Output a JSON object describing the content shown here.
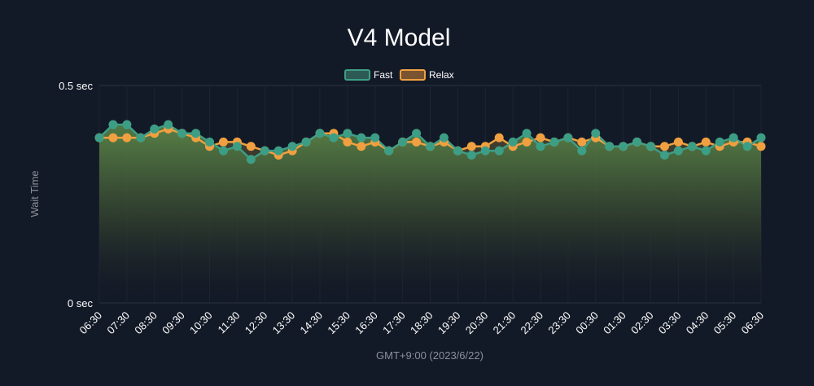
{
  "chart_data": {
    "type": "area",
    "title": "V4 Model",
    "xlabel": "GMT+9:00 (2023/6/22)",
    "ylabel": "Wait Time",
    "y_tick_labels": [
      "0 sec",
      "0.5 sec"
    ],
    "ylim": [
      0,
      0.5
    ],
    "grid": true,
    "legend_position": "top-center",
    "x_tick_labels": [
      "06:30",
      "07:30",
      "08:30",
      "09:30",
      "10:30",
      "11:30",
      "12:30",
      "13:30",
      "14:30",
      "15:30",
      "16:30",
      "17:30",
      "18:30",
      "19:30",
      "20:30",
      "21:30",
      "22:30",
      "23:30",
      "00:30",
      "01:30",
      "02:30",
      "03:30",
      "04:30",
      "05:30",
      "06:30"
    ],
    "points_per_hour": 2,
    "series": [
      {
        "name": "Fast",
        "color": "#3d9e86",
        "values": [
          0.38,
          0.41,
          0.41,
          0.38,
          0.4,
          0.41,
          0.39,
          0.39,
          0.37,
          0.35,
          0.36,
          0.33,
          0.35,
          0.35,
          0.36,
          0.37,
          0.39,
          0.38,
          0.39,
          0.38,
          0.38,
          0.35,
          0.37,
          0.39,
          0.36,
          0.38,
          0.35,
          0.34,
          0.35,
          0.35,
          0.37,
          0.39,
          0.36,
          0.37,
          0.38,
          0.35,
          0.39,
          0.36,
          0.36,
          0.37,
          0.36,
          0.34,
          0.35,
          0.36,
          0.35,
          0.37,
          0.38,
          0.36,
          0.38
        ]
      },
      {
        "name": "Relax",
        "color": "#f0a040",
        "values": [
          0.38,
          0.38,
          0.38,
          0.38,
          0.39,
          0.4,
          0.39,
          0.38,
          0.36,
          0.37,
          0.37,
          0.36,
          0.35,
          0.34,
          0.35,
          0.37,
          0.39,
          0.39,
          0.37,
          0.36,
          0.37,
          0.35,
          0.37,
          0.37,
          0.36,
          0.37,
          0.35,
          0.36,
          0.36,
          0.38,
          0.36,
          0.37,
          0.38,
          0.37,
          0.38,
          0.37,
          0.38,
          0.36,
          0.36,
          0.37,
          0.36,
          0.36,
          0.37,
          0.36,
          0.37,
          0.36,
          0.37,
          0.37,
          0.36
        ]
      }
    ]
  }
}
